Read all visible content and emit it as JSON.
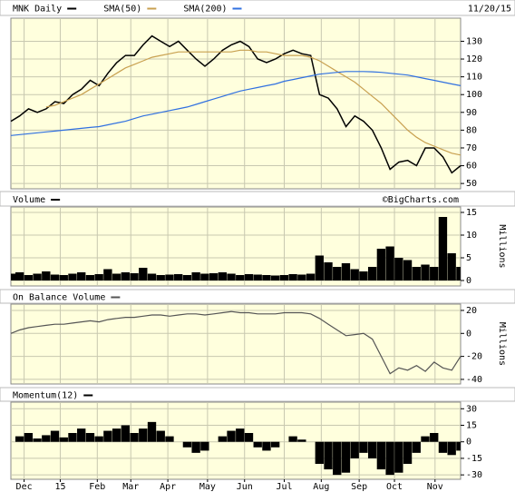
{
  "chart_data": [
    {
      "type": "line",
      "subtitle": "11/20/15",
      "background": "#ffffdd",
      "x": [
        0,
        1,
        2,
        3,
        4,
        5,
        6,
        7,
        8,
        9,
        10,
        11,
        12,
        13,
        14,
        15,
        16,
        17,
        18,
        19,
        20,
        21,
        22,
        23,
        24,
        25,
        26,
        27,
        28,
        29,
        30,
        31,
        32,
        33,
        34,
        35,
        36,
        37,
        38,
        39,
        40,
        41,
        42,
        43,
        44,
        45,
        46,
        47,
        48,
        49,
        50,
        51
      ],
      "xlim": [
        0,
        51
      ],
      "series": [
        {
          "name": "MNK Daily",
          "color": "#000000",
          "values": [
            85,
            88,
            92,
            90,
            92,
            96,
            95,
            100,
            103,
            108,
            105,
            112,
            118,
            122,
            122,
            128,
            133,
            130,
            127,
            130,
            125,
            120,
            116,
            120,
            125,
            128,
            130,
            127,
            120,
            118,
            120,
            123,
            125,
            123,
            122,
            100,
            98,
            92,
            82,
            88,
            85,
            80,
            70,
            58,
            62,
            63,
            60,
            70,
            70,
            65,
            56,
            60
          ]
        },
        {
          "name": "SMA(50)",
          "color": "#c8a050",
          "values": [
            null,
            null,
            null,
            null,
            93,
            94,
            96,
            98,
            100,
            103,
            106,
            109,
            112,
            115,
            117,
            119,
            121,
            122,
            123,
            124,
            124,
            124,
            124,
            124,
            124,
            124,
            125,
            125,
            124,
            124,
            123,
            122,
            122,
            122,
            121,
            119,
            116,
            113,
            110,
            107,
            103,
            99,
            95,
            90,
            85,
            80,
            76,
            73,
            71,
            69,
            67,
            66
          ]
        },
        {
          "name": "SMA(200)",
          "color": "#3070e0",
          "values": [
            77,
            77.5,
            78,
            78.5,
            79,
            79.5,
            80,
            80.5,
            81,
            81.5,
            82,
            83,
            84,
            85,
            86.5,
            88,
            89,
            90,
            91,
            92,
            93,
            94.5,
            96,
            97.5,
            99,
            100.5,
            102,
            103,
            104,
            105,
            106,
            107.5,
            108.5,
            109.5,
            110.5,
            111.5,
            112,
            112.5,
            113,
            113,
            113,
            112.8,
            112.5,
            112,
            111.5,
            111,
            110,
            109,
            108,
            107,
            106,
            105
          ]
        }
      ],
      "ylim": [
        47,
        143
      ],
      "yticks": [
        50,
        60,
        70,
        80,
        90,
        100,
        110,
        120,
        130
      ],
      "grid": true
    },
    {
      "type": "bar",
      "title": "Volume",
      "source": "©BigCharts.com",
      "y_label": "Millions",
      "color": "#000000",
      "background": "#ffffdd",
      "x": [
        0,
        1,
        2,
        3,
        4,
        5,
        6,
        7,
        8,
        9,
        10,
        11,
        12,
        13,
        14,
        15,
        16,
        17,
        18,
        19,
        20,
        21,
        22,
        23,
        24,
        25,
        26,
        27,
        28,
        29,
        30,
        31,
        32,
        33,
        34,
        35,
        36,
        37,
        38,
        39,
        40,
        41,
        42,
        43,
        44,
        45,
        46,
        47,
        48,
        49,
        50,
        51
      ],
      "xlim": [
        0,
        51
      ],
      "values": [
        1.5,
        1.8,
        1.2,
        1.5,
        2,
        1.3,
        1.2,
        1.5,
        1.8,
        1.2,
        1.4,
        2.5,
        1.5,
        1.8,
        1.6,
        2.8,
        1.5,
        1.2,
        1.3,
        1.4,
        1.2,
        1.8,
        1.5,
        1.6,
        1.8,
        1.5,
        1.2,
        1.4,
        1.3,
        1.2,
        1.1,
        1.2,
        1.4,
        1.3,
        1.5,
        5.5,
        4,
        3,
        3.8,
        2.5,
        2,
        3,
        7,
        7.5,
        5,
        4.5,
        3,
        3.5,
        3,
        14,
        6,
        3
      ],
      "ylim": [
        -1.2,
        16.2
      ],
      "yticks": [
        0,
        5,
        10,
        15
      ],
      "grid": true
    },
    {
      "type": "line",
      "title": "On Balance Volume",
      "y_label": "Millions",
      "color": "#555555",
      "background": "#ffffdd",
      "x": [
        0,
        1,
        2,
        3,
        4,
        5,
        6,
        7,
        8,
        9,
        10,
        11,
        12,
        13,
        14,
        15,
        16,
        17,
        18,
        19,
        20,
        21,
        22,
        23,
        24,
        25,
        26,
        27,
        28,
        29,
        30,
        31,
        32,
        33,
        34,
        35,
        36,
        37,
        38,
        39,
        40,
        41,
        42,
        43,
        44,
        45,
        46,
        47,
        48,
        49,
        50,
        51
      ],
      "xlim": [
        0,
        51
      ],
      "values": [
        0,
        3,
        5,
        6,
        7,
        8,
        8,
        9,
        10,
        11,
        10,
        12,
        13,
        14,
        14,
        15,
        16,
        16,
        15,
        16,
        17,
        17,
        16,
        17,
        18,
        19,
        18,
        18,
        17,
        17,
        17,
        18,
        18,
        18,
        17,
        13,
        8,
        3,
        -2,
        -1,
        0,
        -5,
        -20,
        -35,
        -30,
        -32,
        -28,
        -33,
        -25,
        -30,
        -32,
        -20
      ],
      "ylim": [
        -44,
        25.5
      ],
      "yticks": [
        -40,
        -20,
        0,
        20
      ],
      "grid": true
    },
    {
      "type": "bar",
      "title": "Momentum(12)",
      "color": "#000000",
      "background": "#ffffdd",
      "x": [
        0,
        1,
        2,
        3,
        4,
        5,
        6,
        7,
        8,
        9,
        10,
        11,
        12,
        13,
        14,
        15,
        16,
        17,
        18,
        19,
        20,
        21,
        22,
        23,
        24,
        25,
        26,
        27,
        28,
        29,
        30,
        31,
        32,
        33,
        34,
        35,
        36,
        37,
        38,
        39,
        40,
        41,
        42,
        43,
        44,
        45,
        46,
        47,
        48,
        49,
        50,
        51
      ],
      "xlim": [
        0,
        51
      ],
      "values": [
        0,
        5,
        8,
        3,
        6,
        10,
        4,
        8,
        12,
        8,
        5,
        10,
        12,
        15,
        8,
        12,
        18,
        10,
        5,
        0,
        -5,
        -10,
        -8,
        0,
        5,
        10,
        12,
        8,
        -5,
        -8,
        -5,
        0,
        5,
        2,
        0,
        -20,
        -25,
        -30,
        -28,
        -15,
        -10,
        -15,
        -25,
        -30,
        -28,
        -20,
        -10,
        5,
        8,
        -10,
        -12,
        -8
      ],
      "ylim": [
        -34,
        36
      ],
      "yticks": [
        -30,
        -15,
        0,
        15,
        30
      ],
      "grid": true,
      "xticks": [
        {
          "value": 1.5,
          "label": "Dec"
        },
        {
          "value": 5.6,
          "label": "15"
        },
        {
          "value": 9.8,
          "label": "Feb"
        },
        {
          "value": 13.6,
          "label": "Mar"
        },
        {
          "value": 17.8,
          "label": "Apr"
        },
        {
          "value": 22.3,
          "label": "May"
        },
        {
          "value": 26.5,
          "label": "Jun"
        },
        {
          "value": 31,
          "label": "Jul"
        },
        {
          "value": 35.2,
          "label": "Aug"
        },
        {
          "value": 39.5,
          "label": "Sep"
        },
        {
          "value": 43.5,
          "label": "Oct"
        },
        {
          "value": 48.1,
          "label": "Nov"
        }
      ]
    }
  ]
}
